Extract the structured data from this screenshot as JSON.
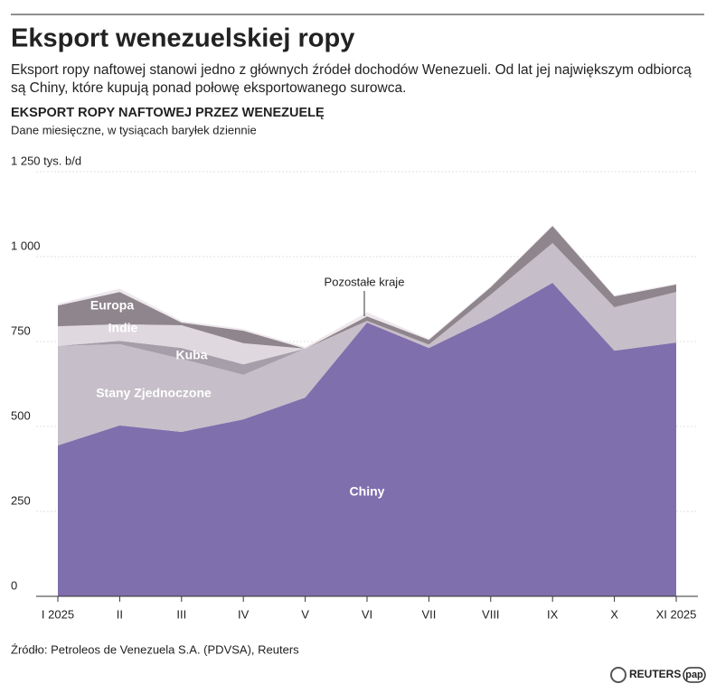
{
  "headline": "Eksport wenezuelskiej ropy",
  "description": [
    "Eksport ropy naftowej stanowi jedno z głównych źródeł dochodów Wenezueli. Od lat jej największym odbiorcą",
    "są Chiny, które kupują ponad połowę eksportowanego surowca."
  ],
  "chart_data": {
    "type": "stacked-area",
    "title": "EKSPORT ROPY NAFTOWEJ PRZEZ WENEZUELĘ",
    "subtitle": "Dane miesięczne, w tysiącach baryłek dziennie",
    "categories": [
      "I 2025",
      "II",
      "III",
      "IV",
      "V",
      "VI",
      "VII",
      "VIII",
      "IX",
      "X",
      "XI 2025"
    ],
    "series": [
      {
        "name": "Chiny",
        "color": "#7f6fad",
        "values": [
          444,
          503,
          484,
          521,
          585,
          806,
          731,
          819,
          923,
          723,
          747
        ]
      },
      {
        "name": "Stany Zjednoczone",
        "color": "#c6bec8",
        "values": [
          293,
          239,
          215,
          131,
          144,
          5,
          10,
          69,
          117,
          128,
          149
        ]
      },
      {
        "name": "Kuba",
        "color": "#a69ea9",
        "values": [
          0,
          10,
          32,
          31,
          0,
          0,
          0,
          0,
          0,
          0,
          0
        ]
      },
      {
        "name": "Indie",
        "color": "#dfd8de",
        "values": [
          58,
          49,
          67,
          62,
          0,
          0,
          0,
          0,
          0,
          0,
          0
        ]
      },
      {
        "name": "Europa",
        "color": "#8f868d",
        "values": [
          61,
          95,
          8,
          37,
          0,
          13,
          14,
          22,
          50,
          32,
          22
        ]
      },
      {
        "name": "Pozostałe kraje",
        "color": "#eee8ec",
        "values": [
          5,
          10,
          5,
          5,
          5,
          12,
          3,
          3,
          3,
          3,
          3
        ]
      }
    ],
    "ylim": [
      0,
      1250
    ],
    "yticks": [
      0,
      250,
      500,
      750,
      {
        "value": 1000,
        "label": "1 000"
      },
      {
        "value": 1250,
        "label": "1 250 tys. b/d"
      }
    ],
    "grid": true
  },
  "source": "Źródło: Petroleos de Venezuela S.A. (PDVSA), Reuters",
  "logos": [
    "REUTERS",
    "pap"
  ]
}
